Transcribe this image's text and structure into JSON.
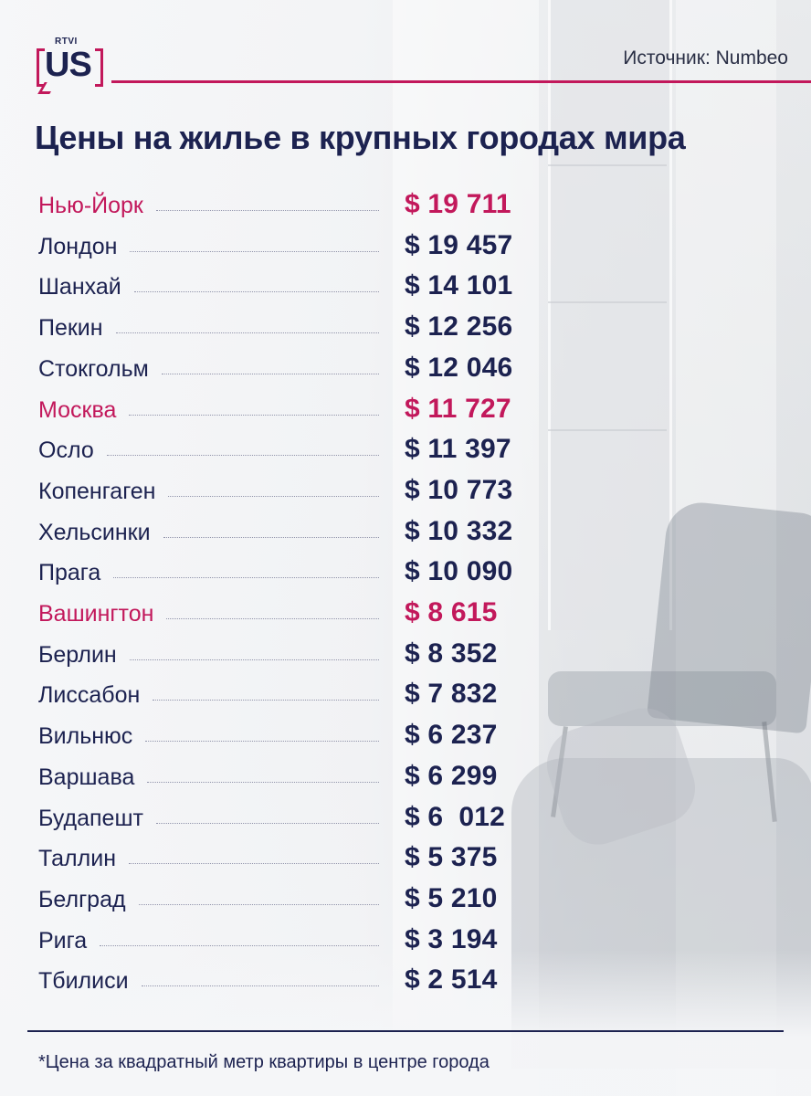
{
  "logo": {
    "small": "RTVI",
    "main": "US"
  },
  "source": "Источник: Numbeo",
  "title": "Цены на жилье в крупных городах мира",
  "accent_color": "#c2185b",
  "text_color": "#1c2250",
  "rows": [
    {
      "city": "Нью-Йорк",
      "price": "$ 19 711",
      "highlight": true
    },
    {
      "city": "Лондон",
      "price": "$ 19 457",
      "highlight": false
    },
    {
      "city": "Шанхай",
      "price": "$ 14 101",
      "highlight": false
    },
    {
      "city": "Пекин",
      "price": "$ 12 256",
      "highlight": false
    },
    {
      "city": "Стокгольм",
      "price": "$ 12 046",
      "highlight": false
    },
    {
      "city": "Москва",
      "price": "$ 11 727",
      "highlight": true
    },
    {
      "city": "Осло",
      "price": "$ 11 397",
      "highlight": false
    },
    {
      "city": "Копенгаген",
      "price": "$ 10 773",
      "highlight": false
    },
    {
      "city": "Хельсинки",
      "price": "$ 10 332",
      "highlight": false
    },
    {
      "city": "Прага",
      "price": "$ 10 090",
      "highlight": false
    },
    {
      "city": "Вашингтон",
      "price": "$ 8 615",
      "highlight": true
    },
    {
      "city": "Берлин",
      "price": "$ 8 352",
      "highlight": false
    },
    {
      "city": "Лиссабон",
      "price": "$ 7 832",
      "highlight": false
    },
    {
      "city": "Вильнюс",
      "price": "$ 6 237",
      "highlight": false
    },
    {
      "city": "Варшава",
      "price": "$ 6 299",
      "highlight": false
    },
    {
      "city": "Будапешт",
      "price": "$ 6  012",
      "highlight": false
    },
    {
      "city": "Таллин",
      "price": "$ 5 375",
      "highlight": false
    },
    {
      "city": "Белград",
      "price": "$ 5 210",
      "highlight": false
    },
    {
      "city": "Рига",
      "price": "$ 3 194",
      "highlight": false
    },
    {
      "city": "Тбилиси",
      "price": "$ 2 514",
      "highlight": false
    }
  ],
  "footnote": "*Цена за квадратный метр квартиры в центре города"
}
